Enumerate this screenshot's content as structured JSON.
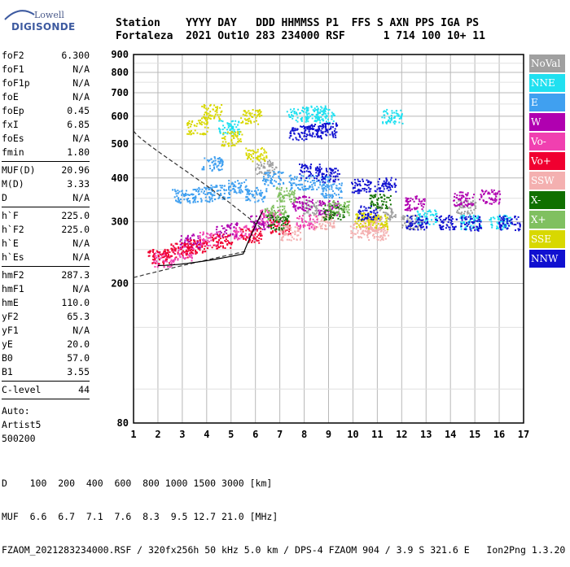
{
  "logo": {
    "line1": "Lowell",
    "line2": "DIGISONDE"
  },
  "header": {
    "row1": "Station    YYYY DAY   DDD HHMMSS P1  FFS S AXN PPS IGA PS",
    "row2": "Fortaleza  2021 Out10 283 234000 RSF      1 714 100 10+ 11"
  },
  "params": [
    {
      "k": "foF2",
      "v": "6.300"
    },
    {
      "k": "foF1",
      "v": "N/A"
    },
    {
      "k": "foF1p",
      "v": "N/A"
    },
    {
      "k": "foE",
      "v": "N/A"
    },
    {
      "k": "foEp",
      "v": "0.45"
    },
    {
      "k": "fxI",
      "v": "6.85"
    },
    {
      "k": "foEs",
      "v": "N/A"
    },
    {
      "k": "fmin",
      "v": "1.80"
    },
    {
      "sep": true
    },
    {
      "k": "MUF(D)",
      "v": "20.96"
    },
    {
      "k": "M(D)",
      "v": "3.33"
    },
    {
      "k": "D",
      "v": "N/A"
    },
    {
      "sep": true
    },
    {
      "k": "h`F",
      "v": "225.0"
    },
    {
      "k": "h`F2",
      "v": "225.0"
    },
    {
      "k": "h`E",
      "v": "N/A"
    },
    {
      "k": "h`Es",
      "v": "N/A"
    },
    {
      "sep": true
    },
    {
      "k": "hmF2",
      "v": "287.3"
    },
    {
      "k": "hmF1",
      "v": "N/A"
    },
    {
      "k": "hmE",
      "v": "110.0"
    },
    {
      "k": "yF2",
      "v": "65.3"
    },
    {
      "k": "yF1",
      "v": "N/A"
    },
    {
      "k": "yE",
      "v": "20.0"
    },
    {
      "k": "B0",
      "v": "57.0"
    },
    {
      "k": "B1",
      "v": "3.55"
    },
    {
      "sep": true
    },
    {
      "k": "C-level",
      "v": "44"
    },
    {
      "sep": true
    }
  ],
  "auto": [
    "Auto:",
    "Artist5",
    "500200"
  ],
  "legend": [
    {
      "label": "NoVal",
      "color": "#a0a0a0"
    },
    {
      "label": "NNE",
      "color": "#20e0f0"
    },
    {
      "label": "E",
      "color": "#40a0f0"
    },
    {
      "label": "W",
      "color": "#b000b0"
    },
    {
      "label": "Vo-",
      "color": "#f040b0"
    },
    {
      "label": "Vo+",
      "color": "#f00030"
    },
    {
      "label": "SSW",
      "color": "#f4b0b0"
    },
    {
      "label": "X-",
      "color": "#107000"
    },
    {
      "label": "X+",
      "color": "#80c060"
    },
    {
      "label": "SSE",
      "color": "#d8d800"
    },
    {
      "label": "NNW",
      "color": "#1010d0"
    }
  ],
  "footer": {
    "d_row": "D    100  200  400  600  800 1000 1500 3000 [km]",
    "muf_row": "MUF  6.6  6.7  7.1  7.6  8.3  9.5 12.7 21.0 [MHz]",
    "info_row": "FZAOM_2021283234000.RSF / 320fx256h 50 kHz 5.0 km / DPS-4 FZAOM 904 / 3.9 S 321.6 E   Ion2Png 1.3.20"
  },
  "chart_data": {
    "type": "scatter",
    "title": "",
    "xlabel": "",
    "ylabel": "",
    "xlim": [
      1,
      17
    ],
    "ylim": [
      80,
      900
    ],
    "x_ticks": [
      "1",
      "2",
      "3",
      "4",
      "5",
      "6",
      "7",
      "8",
      "9",
      "10",
      "11",
      "12",
      "13",
      "14",
      "15",
      "16",
      "17"
    ],
    "y_ticks": [
      "80",
      "200",
      "300",
      "400",
      "500",
      "600",
      "700",
      "800",
      "900"
    ],
    "y_scale": "log",
    "grid": true,
    "series": [
      {
        "name": "NoVal",
        "values": [
          [
            6.4,
            430
          ],
          [
            8.3,
            330
          ],
          [
            11.3,
            320
          ],
          [
            12.4,
            300
          ],
          [
            14.6,
            330
          ]
        ]
      },
      {
        "name": "NNE",
        "values": [
          [
            7.7,
            610
          ],
          [
            8.5,
            615
          ],
          [
            8.8,
            600
          ],
          [
            4.9,
            560
          ],
          [
            11.6,
            600
          ],
          [
            13.0,
            310
          ],
          [
            14.8,
            300
          ],
          [
            16.0,
            300
          ]
        ]
      },
      {
        "name": "E",
        "values": [
          [
            3.0,
            355
          ],
          [
            3.8,
            360
          ],
          [
            4.5,
            365
          ],
          [
            5.3,
            380
          ],
          [
            6.0,
            360
          ],
          [
            6.7,
            400
          ],
          [
            7.8,
            390
          ],
          [
            8.6,
            390
          ],
          [
            9.1,
            370
          ],
          [
            4.2,
            440
          ]
        ]
      },
      {
        "name": "W",
        "values": [
          [
            3.3,
            265
          ],
          [
            4.8,
            285
          ],
          [
            6.2,
            300
          ],
          [
            7.9,
            340
          ],
          [
            9.0,
            330
          ],
          [
            12.5,
            340
          ],
          [
            14.5,
            350
          ],
          [
            15.6,
            355
          ]
        ]
      },
      {
        "name": "Vo-",
        "values": [
          [
            2.2,
            235
          ],
          [
            3.0,
            245
          ],
          [
            4.1,
            270
          ],
          [
            5.5,
            280
          ],
          [
            6.6,
            310
          ],
          [
            8.1,
            300
          ]
        ]
      },
      {
        "name": "Vo+",
        "values": [
          [
            2.0,
            240
          ],
          [
            2.8,
            250
          ],
          [
            3.6,
            255
          ],
          [
            4.6,
            265
          ],
          [
            5.8,
            275
          ],
          [
            7.0,
            290
          ]
        ]
      },
      {
        "name": "SSW",
        "values": [
          [
            7.4,
            280
          ],
          [
            8.8,
            300
          ],
          [
            10.3,
            285
          ],
          [
            11.0,
            280
          ],
          [
            10.8,
            295
          ]
        ]
      },
      {
        "name": "X-",
        "values": [
          [
            6.9,
            300
          ],
          [
            9.2,
            320
          ],
          [
            11.1,
            345
          ]
        ]
      },
      {
        "name": "X+",
        "values": [
          [
            6.8,
            320
          ],
          [
            7.2,
            360
          ],
          [
            9.4,
            330
          ]
        ]
      },
      {
        "name": "SSE",
        "values": [
          [
            3.6,
            560
          ],
          [
            4.2,
            620
          ],
          [
            5.0,
            520
          ],
          [
            5.8,
            600
          ],
          [
            6.0,
            470
          ],
          [
            10.5,
            305
          ],
          [
            11.0,
            300
          ]
        ]
      },
      {
        "name": "NNW",
        "values": [
          [
            7.8,
            540
          ],
          [
            8.4,
            545
          ],
          [
            8.9,
            550
          ],
          [
            8.2,
            420
          ],
          [
            9.0,
            410
          ],
          [
            10.3,
            380
          ],
          [
            11.3,
            385
          ],
          [
            12.6,
            300
          ],
          [
            13.8,
            300
          ],
          [
            14.8,
            298
          ],
          [
            16.4,
            298
          ],
          [
            10.6,
            320
          ]
        ]
      }
    ]
  }
}
